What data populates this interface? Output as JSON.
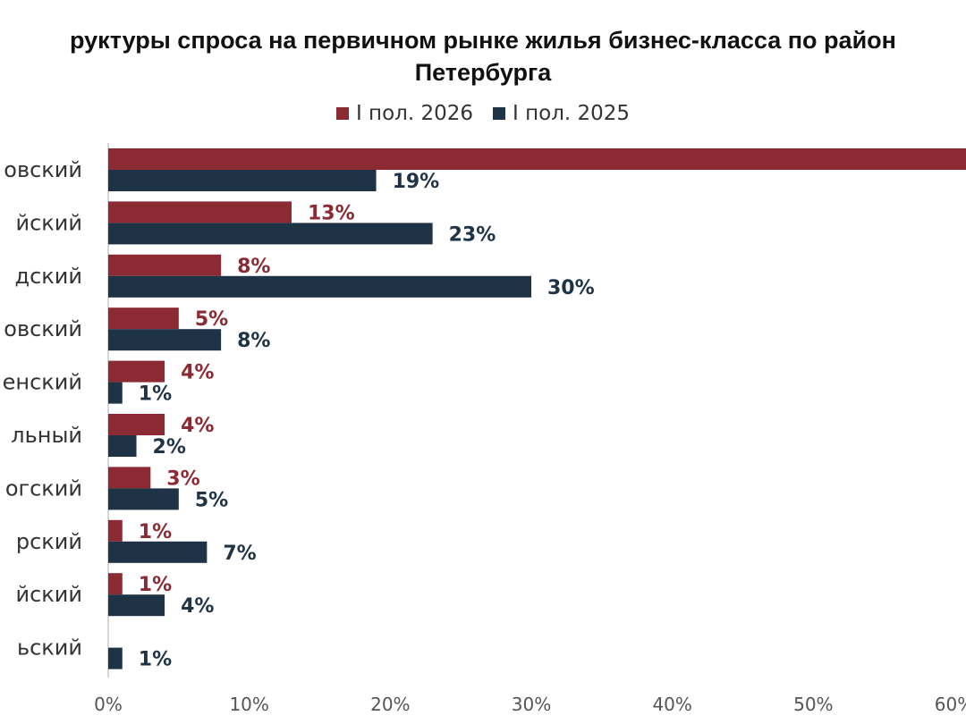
{
  "title_lines": [
    "руктуры спроса на первичном рынке жилья бизнес-класса по район",
    "Петербурга"
  ],
  "legend": [
    {
      "label": "I пол. 2026",
      "color": "#8c2a33"
    },
    {
      "label": "I пол. 2025",
      "color": "#1f3347"
    }
  ],
  "chart_data": {
    "type": "bar",
    "orientation": "horizontal",
    "categories": [
      "овский",
      "йский",
      "дский",
      "овский",
      "енский",
      "льный",
      "огский",
      "рский",
      "йский",
      "ьский"
    ],
    "series": [
      {
        "name": "I пол. 2026",
        "color": "#8c2a33",
        "values": [
          62,
          13,
          8,
          5,
          4,
          4,
          3,
          1,
          1,
          0
        ],
        "labels": [
          "",
          "13%",
          "8%",
          "5%",
          "4%",
          "4%",
          "3%",
          "1%",
          "1%",
          ""
        ]
      },
      {
        "name": "I пол. 2025",
        "color": "#1f3347",
        "values": [
          19,
          23,
          30,
          8,
          1,
          2,
          5,
          7,
          4,
          1
        ],
        "labels": [
          "19%",
          "23%",
          "30%",
          "8%",
          "1%",
          "2%",
          "5%",
          "7%",
          "4%",
          "1%"
        ]
      }
    ],
    "x_ticks": [
      "0%",
      "10%",
      "20%",
      "30%",
      "40%",
      "50%",
      "60%"
    ],
    "xlim": [
      0,
      60
    ],
    "grid": false
  }
}
